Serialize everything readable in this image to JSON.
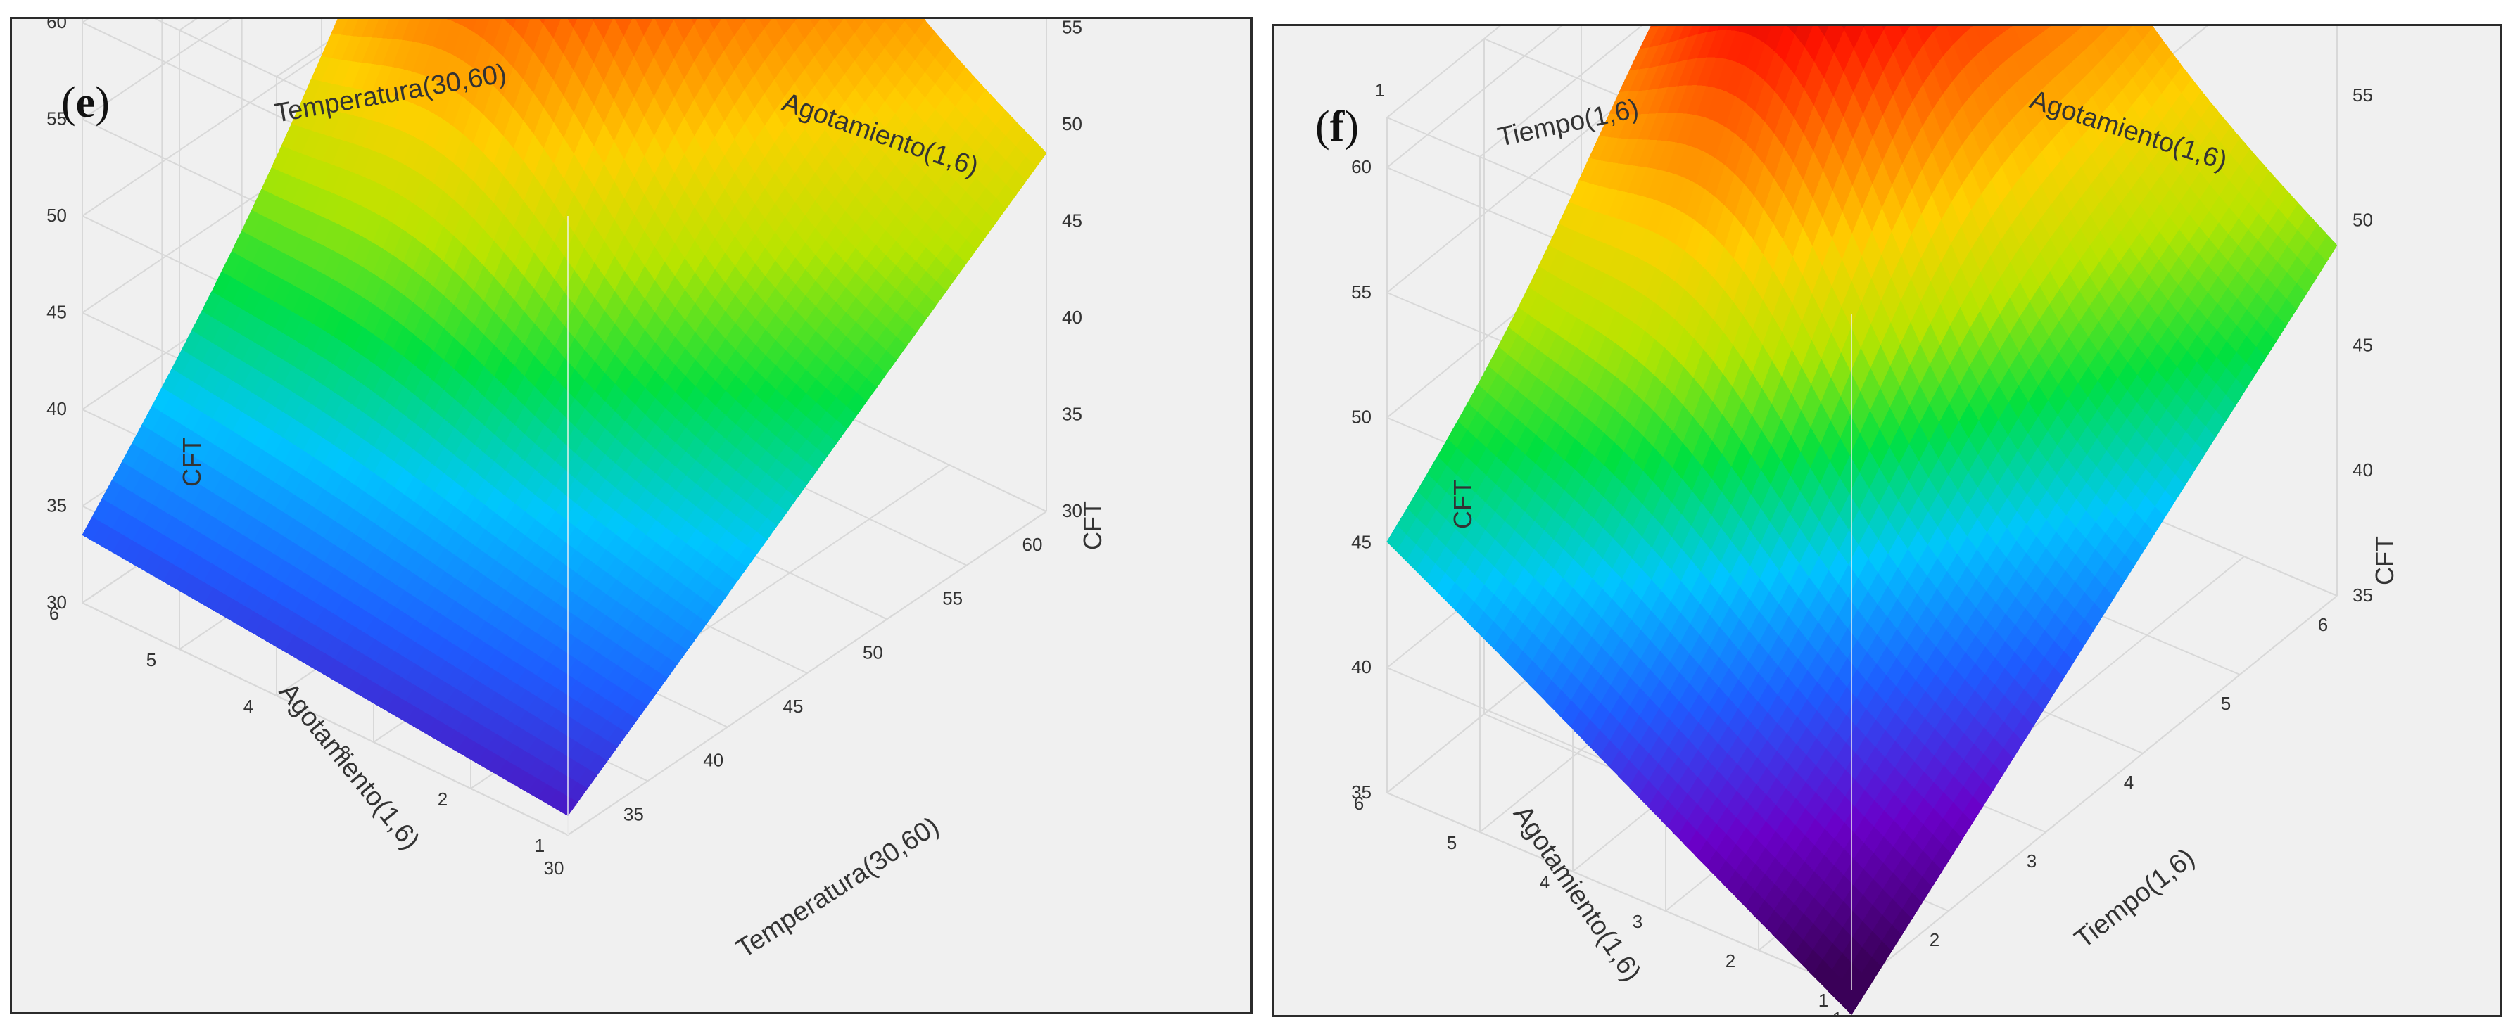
{
  "colors": {
    "panel_bg": "#f0f0f0",
    "border": "#2b2b2b",
    "grid": "#d8d8d8",
    "tick_text": "#333333",
    "axis_text": "#333333"
  },
  "chart_data": [
    {
      "type": "surface",
      "panel_label": "e",
      "zlabel": "CFT",
      "z_ticks": [
        "30",
        "35",
        "40",
        "45",
        "50",
        "55",
        "60"
      ],
      "zlim": [
        30,
        62
      ],
      "x_axis_label": "Temperatura(30,60)",
      "x_ticks": [
        "30",
        "35",
        "40",
        "45",
        "50",
        "55",
        "60"
      ],
      "xlim": [
        30,
        60
      ],
      "y_axis_label": "Agotamiento(1,6)",
      "y_ticks": [
        "1",
        "2",
        "3",
        "4",
        "5",
        "6"
      ],
      "ylim": [
        1,
        6
      ],
      "corners": {
        "low_x_low_y": 31.0,
        "low_x_high_y": 33.5,
        "high_x_low_y": 48.5,
        "high_x_high_y": 62.0
      },
      "peak": {
        "x": 52,
        "y": 4.5,
        "z": 62
      },
      "colorscale": [
        "#5a00b0",
        "#1e5cff",
        "#00c6ff",
        "#00e040",
        "#b8e400",
        "#ffd000",
        "#ff7a00",
        "#ff1400",
        "#8a0010"
      ]
    },
    {
      "type": "surface",
      "panel_label": "f",
      "zlabel": "CFT",
      "z_ticks": [
        "35",
        "40",
        "45",
        "50",
        "55",
        "60"
      ],
      "zlim": [
        35,
        62
      ],
      "x_axis_label": "Tiempo(1,6)",
      "x_ticks": [
        "1",
        "2",
        "3",
        "4",
        "5",
        "6"
      ],
      "xlim": [
        1,
        6
      ],
      "y_axis_label": "Agotamiento(1,6)",
      "y_ticks": [
        "1",
        "2",
        "3",
        "4",
        "5",
        "6"
      ],
      "ylim": [
        1,
        6
      ],
      "corners": {
        "low_x_low_y": 34.0,
        "low_x_high_y": 45.0,
        "high_x_low_y": 49.0,
        "high_x_high_y": 61.0
      },
      "peak": {
        "x": 4.2,
        "y": 4.5,
        "z": 62
      },
      "colorscale": [
        "#3a0058",
        "#6a00c8",
        "#1e5cff",
        "#00c6ff",
        "#00e040",
        "#b8e400",
        "#ffd000",
        "#ff7a00",
        "#ff1400",
        "#8a0010"
      ]
    }
  ]
}
